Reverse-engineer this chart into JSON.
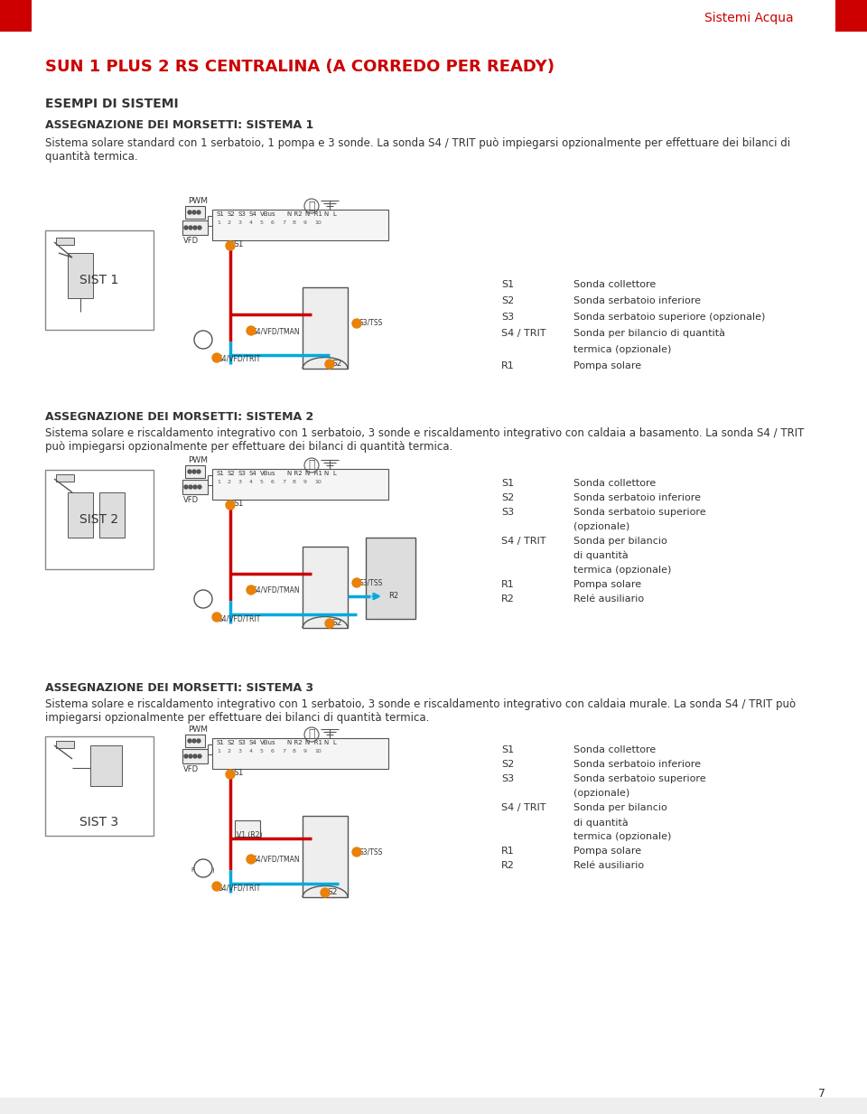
{
  "page_bg": "#ffffff",
  "header_red": "#cc0000",
  "header_text": "Sistemi Acqua",
  "title": "SUN 1 PLUS 2 RS CENTRALINA (A CORREDO PER READY)",
  "title_color": "#cc0000",
  "section_title": "ESEMPI DI SISTEMI",
  "sub1_title": "ASSEGNAZIONE DEI MORSETTI: SISTEMA 1",
  "sub1_desc": "Sistema solare standard con 1 serbatoio, 1 pompa e 3 sonde. La sonda S4 / TRIT può impiegarsi opzionalmente per effettuare dei bilanci di\nquantità termica.",
  "sub2_title": "ASSEGNAZIONE DEI MORSETTI: SISTEMA 2",
  "sub2_desc": "Sistema solare e riscaldamento integrativo con 1 serbatoio, 3 sonde e riscaldamento integrativo con caldaia a basamento. La sonda S4 / TRIT\npuò impiegarsi opzionalmente per effettuare dei bilanci di quantità termica.",
  "sub3_title": "ASSEGNAZIONE DEI MORSETTI: SISTEMA 3",
  "sub3_desc": "Sistema solare e riscaldamento integrativo con 1 serbatoio, 3 sonde e riscaldamento integrativo con caldaia murale. La sonda S4 / TRIT può\nimpiegarsi opzionalmente per effettuare dei bilanci di quantità termica.",
  "legend1": [
    [
      "S1",
      "Sonda collettore"
    ],
    [
      "S2",
      "Sonda serbatoio inferiore"
    ],
    [
      "S3",
      "Sonda serbatoio superiore (opzionale)"
    ],
    [
      "S4 / TRIT",
      "Sonda per bilancio di quantità"
    ],
    [
      "",
      "termica (opzionale)"
    ],
    [
      "R1",
      "Pompa solare"
    ]
  ],
  "legend2": [
    [
      "S1",
      "Sonda collettore"
    ],
    [
      "S2",
      "Sonda serbatoio inferiore"
    ],
    [
      "S3",
      "Sonda serbatoio superiore"
    ],
    [
      "",
      "(opzionale)"
    ],
    [
      "S4 / TRIT",
      "Sonda per bilancio"
    ],
    [
      "",
      "di quantità"
    ],
    [
      "",
      "termica (opzionale)"
    ],
    [
      "R1",
      "Pompa solare"
    ],
    [
      "R2",
      "Relé ausiliario"
    ]
  ],
  "legend3": [
    [
      "S1",
      "Sonda collettore"
    ],
    [
      "S2",
      "Sonda serbatoio inferiore"
    ],
    [
      "S3",
      "Sonda serbatoio superiore"
    ],
    [
      "",
      "(opzionale)"
    ],
    [
      "S4 / TRIT",
      "Sonda per bilancio"
    ],
    [
      "",
      "di quantità"
    ],
    [
      "",
      "termica (opzionale)"
    ],
    [
      "R1",
      "Pompa solare"
    ],
    [
      "R2",
      "Relé ausiliario"
    ]
  ],
  "page_num": "7",
  "sist_labels": [
    "SIST 1",
    "SIST 2",
    "SIST 3"
  ],
  "orange_dot_color": "#e8820a",
  "red_line_color": "#cc0000",
  "blue_line_color": "#00aadd",
  "dark_color": "#333333",
  "gray_color": "#888888",
  "light_gray": "#cccccc"
}
